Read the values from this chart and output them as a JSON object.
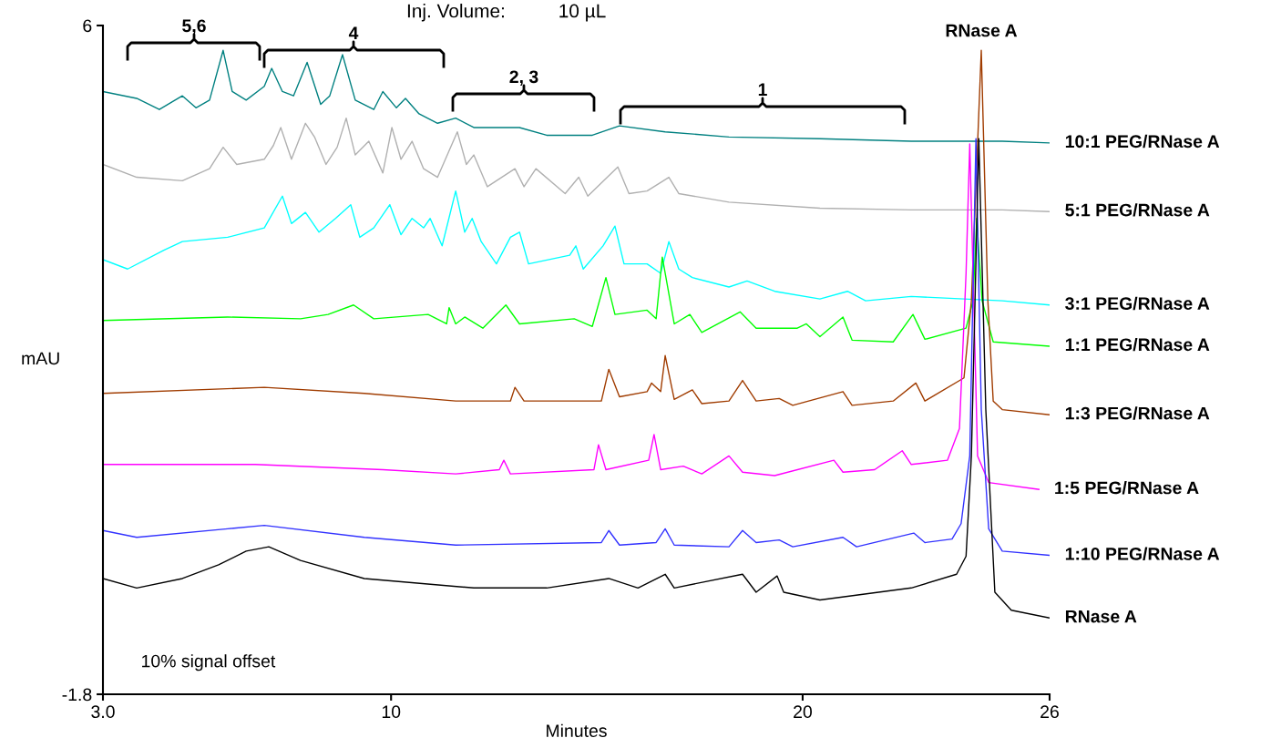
{
  "chart_data": {
    "type": "line",
    "xlabel": "Minutes",
    "ylabel": "mAU",
    "xlim": [
      3,
      26
    ],
    "ylim": [
      -1.8,
      6
    ],
    "xticks": [
      {
        "value": 3,
        "label": "3.0"
      },
      10,
      20,
      26
    ],
    "yticks": [
      6,
      {
        "value": -1.8,
        "label": "-1.8"
      }
    ],
    "grid": false,
    "legend": false,
    "marker": "none",
    "line_style": "solid",
    "annotations": [
      "Inj. Volume:          10 µL",
      "10% signal offset",
      "5,6",
      "4",
      "2, 3",
      "1",
      {
        "text": "RNase A",
        "x": 24.34,
        "y": 5.71
      }
    ],
    "series": [
      {
        "name": "10:1 PEG/RNase A",
        "color": "#008080",
        "x": [
          3.0,
          3.82,
          4.37,
          4.93,
          5.26,
          5.59,
          5.92,
          6.14,
          6.48,
          6.92,
          7.1,
          7.36,
          7.63,
          7.96,
          8.29,
          8.51,
          8.82,
          9.13,
          9.58,
          9.8,
          10.13,
          10.35,
          10.68,
          11.13,
          11.57,
          12.01,
          13.12,
          13.78,
          14.89,
          15.55,
          16.66,
          18.21,
          20.42,
          22.64,
          24.85,
          26.0
        ],
        "values": [
          5.23,
          5.15,
          5.02,
          5.18,
          5.04,
          5.13,
          5.71,
          5.23,
          5.13,
          5.29,
          5.5,
          5.23,
          5.18,
          5.57,
          5.08,
          5.18,
          5.66,
          5.13,
          5.02,
          5.23,
          5.04,
          5.15,
          4.97,
          4.86,
          4.92,
          4.81,
          4.81,
          4.72,
          4.72,
          4.83,
          4.76,
          4.7,
          4.68,
          4.65,
          4.65,
          4.63
        ]
      },
      {
        "name": "5:1 PEG/RNase A",
        "color": "#b0b0b0",
        "x": [
          3.0,
          3.82,
          4.93,
          5.59,
          5.92,
          6.25,
          6.92,
          7.14,
          7.32,
          7.58,
          7.92,
          8.14,
          8.42,
          8.69,
          8.91,
          9.13,
          9.46,
          9.8,
          10.02,
          10.24,
          10.51,
          10.79,
          11.13,
          11.61,
          11.83,
          12.01,
          12.34,
          13.01,
          13.23,
          13.52,
          14.23,
          14.56,
          14.78,
          15.51,
          15.78,
          16.22,
          16.75,
          16.99,
          18.21,
          20.42,
          22.64,
          24.85,
          26.0
        ],
        "values": [
          4.38,
          4.23,
          4.19,
          4.33,
          4.58,
          4.38,
          4.44,
          4.6,
          4.81,
          4.44,
          4.86,
          4.7,
          4.38,
          4.58,
          4.92,
          4.49,
          4.65,
          4.28,
          4.81,
          4.44,
          4.65,
          4.33,
          4.23,
          4.76,
          4.38,
          4.49,
          4.12,
          4.33,
          4.12,
          4.33,
          4.04,
          4.23,
          4.01,
          4.35,
          4.04,
          4.07,
          4.23,
          4.04,
          3.94,
          3.87,
          3.85,
          3.85,
          3.83
        ]
      },
      {
        "name": "3:1 PEG/RNase A",
        "color": "#00ffff",
        "x": [
          3.0,
          3.6,
          4.48,
          4.93,
          6.03,
          6.92,
          7.36,
          7.58,
          7.92,
          8.25,
          8.65,
          9.02,
          9.24,
          9.58,
          9.97,
          10.24,
          10.51,
          10.79,
          10.95,
          11.24,
          11.57,
          11.79,
          11.97,
          12.19,
          12.56,
          12.9,
          13.12,
          13.34,
          14.34,
          14.49,
          14.67,
          15.15,
          15.44,
          15.66,
          16.22,
          16.55,
          16.75,
          16.99,
          17.32,
          18.21,
          18.65,
          19.32,
          20.42,
          21.09,
          21.53,
          22.64,
          24.85,
          26.0
        ],
        "values": [
          3.27,
          3.16,
          3.38,
          3.48,
          3.53,
          3.64,
          4.01,
          3.69,
          3.82,
          3.59,
          3.75,
          3.91,
          3.53,
          3.64,
          3.91,
          3.56,
          3.75,
          3.64,
          3.75,
          3.43,
          4.07,
          3.59,
          3.75,
          3.48,
          3.22,
          3.53,
          3.59,
          3.22,
          3.32,
          3.43,
          3.16,
          3.43,
          3.66,
          3.22,
          3.22,
          3.11,
          3.48,
          3.16,
          3.06,
          2.95,
          3.02,
          2.9,
          2.81,
          2.9,
          2.79,
          2.84,
          2.79,
          2.74
        ]
      },
      {
        "name": "1:1 PEG/RNase A",
        "color": "#00ff00",
        "x": [
          3.0,
          6.03,
          7.8,
          8.47,
          9.09,
          9.58,
          10.9,
          11.35,
          11.41,
          11.57,
          11.79,
          12.23,
          12.79,
          13.12,
          14.45,
          14.89,
          15.22,
          15.44,
          16.22,
          16.44,
          16.59,
          16.88,
          17.26,
          17.55,
          18.48,
          18.87,
          19.87,
          20.09,
          20.42,
          20.98,
          21.2,
          22.2,
          22.68,
          22.97,
          23.97,
          24.14,
          24.23,
          24.36,
          24.63,
          26.0
        ],
        "values": [
          2.56,
          2.6,
          2.58,
          2.63,
          2.74,
          2.58,
          2.63,
          2.52,
          2.71,
          2.52,
          2.6,
          2.47,
          2.74,
          2.52,
          2.58,
          2.49,
          3.06,
          2.63,
          2.68,
          2.58,
          3.3,
          2.52,
          2.63,
          2.42,
          2.66,
          2.47,
          2.47,
          2.52,
          2.37,
          2.6,
          2.33,
          2.31,
          2.63,
          2.34,
          2.47,
          2.79,
          3.75,
          2.79,
          2.31,
          2.26
        ]
      },
      {
        "name": "1:3 PEG/RNase A",
        "color": "#a03c00",
        "x": [
          3.0,
          6.92,
          9.35,
          11.57,
          12.9,
          13.01,
          13.23,
          15.11,
          15.29,
          15.55,
          16.22,
          16.33,
          16.55,
          16.66,
          16.88,
          17.32,
          17.55,
          18.21,
          18.54,
          18.87,
          19.43,
          19.76,
          20.98,
          21.2,
          22.2,
          22.75,
          22.97,
          23.92,
          24.1,
          24.34,
          24.5,
          24.63,
          24.85,
          26.0
        ],
        "values": [
          1.71,
          1.78,
          1.71,
          1.62,
          1.62,
          1.78,
          1.62,
          1.62,
          1.99,
          1.67,
          1.73,
          1.83,
          1.73,
          2.15,
          1.64,
          1.75,
          1.59,
          1.62,
          1.86,
          1.62,
          1.65,
          1.57,
          1.73,
          1.57,
          1.62,
          1.83,
          1.62,
          1.89,
          2.79,
          5.71,
          2.79,
          1.62,
          1.52,
          1.46
        ]
      },
      {
        "name": "1:5 PEG/RNase A",
        "color": "#ff00ff",
        "x": [
          3.0,
          6.7,
          9.8,
          11.57,
          12.63,
          12.74,
          12.9,
          14.93,
          15.04,
          15.22,
          16.26,
          16.39,
          16.55,
          17.1,
          17.55,
          18.21,
          18.54,
          19.32,
          20.76,
          20.98,
          21.75,
          22.42,
          22.64,
          23.52,
          23.81,
          23.97,
          24.06,
          24.14,
          24.25,
          24.52,
          25.74
        ],
        "values": [
          0.88,
          0.88,
          0.82,
          0.77,
          0.82,
          0.93,
          0.77,
          0.82,
          1.11,
          0.82,
          0.93,
          1.23,
          0.82,
          0.86,
          0.77,
          0.98,
          0.79,
          0.75,
          0.93,
          0.79,
          0.82,
          1.04,
          0.88,
          0.93,
          1.3,
          3.11,
          4.62,
          3.11,
          0.98,
          0.67,
          0.59
        ]
      },
      {
        "name": "1:10 PEG/RNase A",
        "color": "#3333ff",
        "x": [
          3.0,
          3.82,
          6.03,
          6.92,
          9.35,
          11.57,
          15.11,
          15.29,
          15.55,
          16.44,
          16.66,
          16.88,
          18.21,
          18.54,
          18.87,
          19.43,
          19.76,
          20.98,
          21.31,
          22.7,
          22.97,
          23.63,
          23.85,
          24.06,
          24.21,
          24.34,
          24.52,
          24.85,
          26.0
        ],
        "values": [
          0.11,
          0.03,
          0.13,
          0.17,
          0.03,
          -0.06,
          -0.03,
          0.11,
          -0.06,
          -0.03,
          0.13,
          -0.06,
          -0.08,
          0.11,
          -0.03,
          0.0,
          -0.08,
          0.03,
          -0.08,
          0.08,
          -0.03,
          0.01,
          0.19,
          0.98,
          4.68,
          1.52,
          0.13,
          -0.13,
          -0.18
        ]
      },
      {
        "name": "RNase A",
        "color": "#000000",
        "x": [
          3.0,
          3.82,
          4.93,
          5.81,
          6.48,
          7.03,
          7.8,
          9.35,
          12.01,
          13.78,
          15.29,
          16.0,
          16.66,
          16.88,
          18.54,
          18.87,
          19.38,
          19.54,
          20.42,
          22.64,
          23.74,
          23.97,
          24.1,
          24.28,
          24.45,
          24.67,
          25.07,
          26.0
        ],
        "values": [
          -0.45,
          -0.56,
          -0.45,
          -0.29,
          -0.13,
          -0.08,
          -0.24,
          -0.45,
          -0.56,
          -0.56,
          -0.45,
          -0.56,
          -0.4,
          -0.56,
          -0.4,
          -0.61,
          -0.42,
          -0.61,
          -0.7,
          -0.56,
          -0.4,
          -0.19,
          0.98,
          4.68,
          1.52,
          -0.61,
          -0.82,
          -0.91
        ]
      }
    ]
  }
}
